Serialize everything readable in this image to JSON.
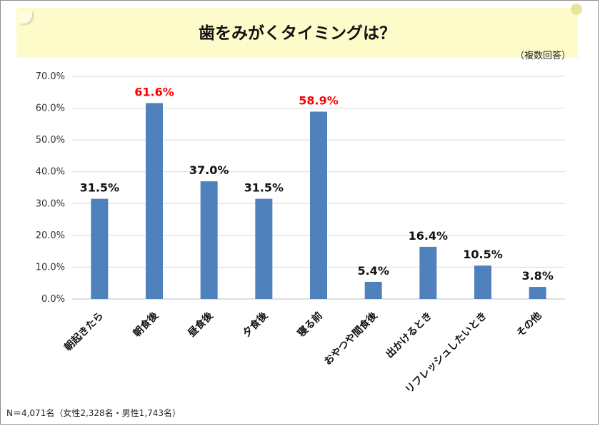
{
  "header": {
    "title": "歯をみがくタイミングは？",
    "subtitle": "（複数回答）"
  },
  "footnote": "N＝4,071名（女性2,328名・男性1,743名）",
  "colors": {
    "bar": "#4f81bd",
    "highlight_label": "#ff0000",
    "normal_label": "#111111",
    "grid": "#d9d9d9",
    "banner": "#fdfbc9"
  },
  "chart_data": {
    "type": "bar",
    "title": "歯をみがくタイミングは？",
    "xlabel": "",
    "ylabel": "",
    "ylim": [
      0,
      70
    ],
    "yticks": [
      "0.0%",
      "10.0%",
      "20.0%",
      "30.0%",
      "40.0%",
      "50.0%",
      "60.0%",
      "70.0%"
    ],
    "grid": true,
    "categories": [
      "朝起きたら",
      "朝食後",
      "昼食後",
      "夕食後",
      "寝る前",
      "おやつや間食後",
      "出かけるとき",
      "リフレッシュしたいとき",
      "その他"
    ],
    "values": [
      31.5,
      61.6,
      37.0,
      31.5,
      58.9,
      5.4,
      16.4,
      10.5,
      3.8
    ],
    "data_labels": [
      "31.5%",
      "61.6%",
      "37.0%",
      "31.5%",
      "58.9%",
      "5.4%",
      "16.4%",
      "10.5%",
      "3.8%"
    ],
    "highlighted": [
      false,
      true,
      false,
      false,
      true,
      false,
      false,
      false,
      false
    ]
  }
}
